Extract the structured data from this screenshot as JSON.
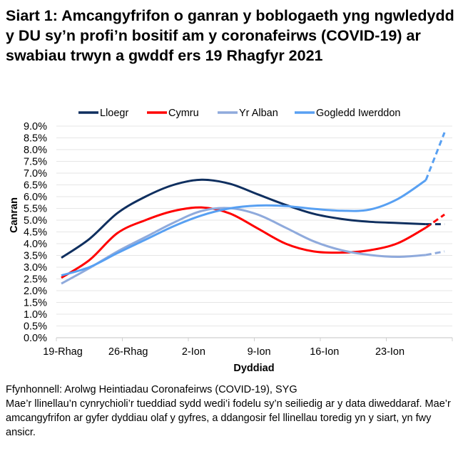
{
  "title": "Siart 1: Amcangyfrifon o ganran y boblogaeth yng ngwledydd y DU sy’n profi’n bositif am y coronafeirws (COVID-19) ar swabiau trwyn a gwddf ers 19 Rhagfyr 2021",
  "chart_data": {
    "type": "line",
    "xlabel": "Dyddiad",
    "ylabel": "Canran",
    "x_tick_labels": [
      "19-Rhag",
      "26-Rhag",
      "2-Ion",
      "9-Ion",
      "16-Ion",
      "23-Ion"
    ],
    "y_tick_labels": [
      "0.0%",
      "0.5%",
      "1.0%",
      "1.5%",
      "2.0%",
      "2.5%",
      "3.0%",
      "3.5%",
      "4.0%",
      "4.5%",
      "5.0%",
      "5.5%",
      "6.0%",
      "6.5%",
      "7.0%",
      "7.5%",
      "8.0%",
      "8.5%",
      "9.0%"
    ],
    "ylim": [
      0,
      9
    ],
    "y_unit": "%",
    "grid": true,
    "legend_position": "top",
    "x": [
      "2021-12-19",
      "2021-12-22",
      "2021-12-25",
      "2021-12-28",
      "2021-12-31",
      "2022-01-03",
      "2022-01-06",
      "2022-01-09",
      "2022-01-12",
      "2022-01-15",
      "2022-01-18",
      "2022-01-21",
      "2022-01-24",
      "2022-01-27",
      "2022-01-29"
    ],
    "dashed_from": "2022-01-27",
    "series": [
      {
        "name": "Lloegr",
        "color": "#0f2f5f",
        "values": [
          3.4,
          4.2,
          5.3,
          6.0,
          6.5,
          6.72,
          6.55,
          6.1,
          5.65,
          5.27,
          5.05,
          4.93,
          4.88,
          4.83,
          4.83
        ]
      },
      {
        "name": "Cymru",
        "color": "#ff0000",
        "values": [
          2.55,
          3.3,
          4.45,
          5.0,
          5.39,
          5.54,
          5.29,
          4.65,
          4.0,
          3.67,
          3.62,
          3.72,
          4.02,
          4.68,
          5.24
        ]
      },
      {
        "name": "Yr Alban",
        "color": "#8faadc",
        "values": [
          2.3,
          2.96,
          3.67,
          4.28,
          4.89,
          5.39,
          5.51,
          5.24,
          4.68,
          4.1,
          3.72,
          3.52,
          3.44,
          3.52,
          3.67
        ]
      },
      {
        "name": "Gogledd Iwerddon",
        "color": "#58a0f2",
        "values": [
          2.65,
          3.0,
          3.6,
          4.17,
          4.74,
          5.2,
          5.5,
          5.62,
          5.6,
          5.48,
          5.4,
          5.45,
          5.9,
          6.7,
          8.73
        ]
      }
    ]
  },
  "footer": {
    "source": "Ffynhonnell: Arolwg Heintiadau Coronafeirws (COVID-19), SYG",
    "note": "Mae’r llinellau’n cynrychioli’r tueddiad sydd wedi’i fodelu sy’n seiliedig ar y data diweddaraf. Mae’r amcangyfrifon ar gyfer dyddiau olaf y gyfres, a ddangosir fel llinellau toredig yn y siart, yn fwy ansicr."
  }
}
